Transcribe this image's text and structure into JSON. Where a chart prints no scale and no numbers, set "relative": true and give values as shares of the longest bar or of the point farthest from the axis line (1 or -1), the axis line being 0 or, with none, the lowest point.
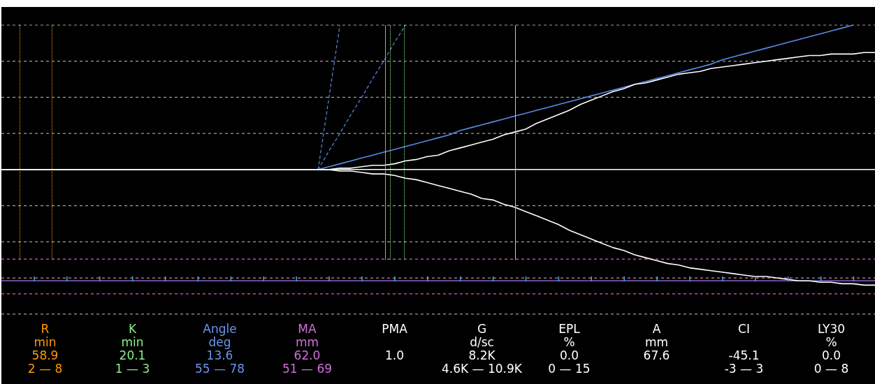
{
  "chart_data": [
    {
      "type": "line",
      "relative": true,
      "legend": false,
      "marker": "none",
      "categories": [
        null,
        null,
        null,
        null,
        null,
        null,
        null,
        null,
        null,
        null,
        null,
        null,
        null,
        null,
        null,
        null,
        null,
        null,
        null,
        null,
        null,
        null,
        null,
        null,
        null,
        null,
        null,
        null,
        null,
        null,
        null,
        null,
        null,
        null,
        null,
        null,
        null,
        null,
        null,
        null,
        null,
        null,
        null,
        null,
        null,
        null,
        null,
        null,
        null,
        null,
        null,
        null,
        null,
        null,
        null,
        null,
        null,
        null,
        null,
        null,
        null,
        null,
        null,
        null,
        null,
        null,
        null,
        null,
        null,
        null,
        null,
        null,
        null,
        null,
        null,
        null,
        null,
        null,
        null,
        null,
        null
      ],
      "series": [
        {
          "color": "#ffffff",
          "values": [
            0,
            0,
            0,
            0,
            0,
            0,
            0,
            0,
            0,
            0,
            0,
            0,
            0,
            0,
            0,
            0,
            0,
            0,
            0,
            0,
            0,
            0,
            0,
            0,
            0,
            0,
            0,
            0,
            0,
            0,
            0,
            0.01,
            0.01,
            0.02,
            0.03,
            0.03,
            0.04,
            0.06,
            0.07,
            0.09,
            0.1,
            0.13,
            0.15,
            0.17,
            0.19,
            0.21,
            0.24,
            0.26,
            0.28,
            0.32,
            0.35,
            0.38,
            0.41,
            0.45,
            0.48,
            0.51,
            0.54,
            0.56,
            0.59,
            0.6,
            0.62,
            0.64,
            0.66,
            0.67,
            0.68,
            0.7,
            0.71,
            0.72,
            0.73,
            0.74,
            0.75,
            0.76,
            0.77,
            0.78,
            0.79,
            0.79,
            0.8,
            0.8,
            0.8,
            0.81,
            0.81
          ]
        },
        {
          "color": "#ffffff",
          "values": [
            null,
            null,
            null,
            null,
            null,
            null,
            null,
            null,
            null,
            null,
            null,
            null,
            null,
            null,
            null,
            null,
            null,
            null,
            null,
            null,
            null,
            null,
            null,
            null,
            null,
            null,
            null,
            null,
            null,
            0,
            0,
            -0.01,
            -0.01,
            -0.02,
            -0.03,
            -0.03,
            -0.04,
            -0.06,
            -0.07,
            -0.09,
            -0.11,
            -0.13,
            -0.15,
            -0.17,
            -0.2,
            -0.21,
            -0.24,
            -0.26,
            -0.29,
            -0.32,
            -0.35,
            -0.38,
            -0.42,
            -0.45,
            -0.48,
            -0.51,
            -0.54,
            -0.56,
            -0.59,
            -0.61,
            -0.63,
            -0.65,
            -0.66,
            -0.68,
            -0.69,
            -0.7,
            -0.71,
            -0.72,
            -0.73,
            -0.74,
            -0.74,
            -0.75,
            -0.76,
            -0.77,
            -0.77,
            -0.78,
            -0.78,
            -0.79,
            -0.79,
            -0.8,
            -0.8
          ]
        },
        {
          "color": "#5b8ae6",
          "values": [
            null,
            null,
            null,
            null,
            null,
            null,
            null,
            null,
            null,
            null,
            null,
            null,
            null,
            null,
            null,
            null,
            null,
            null,
            null,
            null,
            null,
            null,
            null,
            null,
            null,
            null,
            null,
            null,
            null,
            0,
            0.02,
            0.04,
            0.06,
            0.08,
            0.1,
            0.12,
            0.14,
            0.16,
            0.18,
            0.2,
            0.22,
            0.24,
            0.27,
            0.29,
            0.31,
            0.33,
            0.35,
            0.37,
            0.39,
            0.41,
            0.43,
            0.45,
            0.47,
            0.49,
            0.51,
            0.53,
            0.55,
            0.57,
            0.59,
            0.61,
            0.63,
            0.65,
            0.67,
            0.69,
            0.71,
            0.73,
            0.76,
            0.78,
            0.8,
            0.82,
            0.84,
            0.86,
            0.88,
            0.9,
            0.92,
            0.94,
            0.96,
            0.98,
            1,
            null,
            null
          ]
        },
        {
          "color": "#5b8ae6",
          "line_style": "dashed",
          "values": [
            null,
            null,
            null,
            null,
            null,
            null,
            null,
            null,
            null,
            null,
            null,
            null,
            null,
            null,
            null,
            null,
            null,
            null,
            null,
            null,
            null,
            null,
            null,
            null,
            null,
            null,
            null,
            null,
            null,
            0,
            0.5,
            1,
            null,
            null,
            null,
            null,
            null,
            null,
            null,
            null,
            null,
            null,
            null,
            null,
            null,
            null,
            null,
            null,
            null,
            null,
            null,
            null,
            null,
            null,
            null,
            null,
            null,
            null,
            null,
            null,
            null,
            null,
            null,
            null,
            null,
            null,
            null,
            null,
            null,
            null,
            null,
            null,
            null,
            null,
            null,
            null,
            null,
            null,
            null,
            null,
            null
          ]
        },
        {
          "color": "#5b8ae6",
          "line_style": "dashed",
          "values": [
            null,
            null,
            null,
            null,
            null,
            null,
            null,
            null,
            null,
            null,
            null,
            null,
            null,
            null,
            null,
            null,
            null,
            null,
            null,
            null,
            null,
            null,
            null,
            null,
            null,
            null,
            null,
            null,
            null,
            0,
            0.13,
            0.25,
            0.38,
            0.5,
            0.63,
            0.75,
            0.88,
            1,
            null,
            null,
            null,
            null,
            null,
            null,
            null,
            null,
            null,
            null,
            null,
            null,
            null,
            null,
            null,
            null,
            null,
            null,
            null,
            null,
            null,
            null,
            null,
            null,
            null,
            null,
            null,
            null,
            null,
            null,
            null,
            null,
            null,
            null,
            null,
            null,
            null,
            null,
            null,
            null,
            null,
            null,
            null
          ]
        }
      ],
      "ref_lines": [
        {
          "axis": "y",
          "value": 1.0,
          "color": "#a0a0a0",
          "line_style": "dashed"
        },
        {
          "axis": "y",
          "value": 0.75,
          "color": "#a0a0a0",
          "line_style": "dashed"
        },
        {
          "axis": "y",
          "value": 0.5,
          "color": "#a0a0a0",
          "line_style": "dashed"
        },
        {
          "axis": "y",
          "value": 0.25,
          "color": "#a0a0a0",
          "line_style": "dashed"
        },
        {
          "axis": "y",
          "value": -0.25,
          "color": "#a0a0a0",
          "line_style": "dashed"
        },
        {
          "axis": "y",
          "value": -0.5,
          "color": "#a0a0a0",
          "line_style": "dashed"
        },
        {
          "axis": "y",
          "value": -0.75,
          "color": "#a0a0a0",
          "line_style": "dashed"
        },
        {
          "axis": "y",
          "value": -1.0,
          "color": "#a0a0a0",
          "line_style": "dashed"
        },
        {
          "axis": "y",
          "value": -0.62,
          "color": "#cc66cc",
          "line_style": "dashed"
        },
        {
          "axis": "y",
          "value": -0.86,
          "color": "#cc66cc",
          "line_style": "dashed"
        },
        {
          "axis": "y",
          "value": -0.77,
          "color": "#b070f0",
          "line_style": "solid"
        }
      ]
    },
    {
      "type": "other",
      "categories": [
        "R",
        "K",
        "Angle",
        "MA",
        "PMA",
        "G",
        "EPL",
        "A",
        "CI",
        "LY30"
      ],
      "colors": [
        "#ff9900",
        "#88ee88",
        "#6a96f0",
        "#d070d8",
        "#ffffff",
        "#ffffff",
        "#ffffff",
        "#ffffff",
        "#ffffff",
        "#ffffff"
      ],
      "cell_labels": [
        [
          "min",
          "min",
          "deg",
          "mm",
          null,
          "d/sc",
          "%",
          "mm",
          null,
          "%"
        ],
        [
          "58.9",
          "20.1",
          "13.6",
          "62.0",
          "1.0",
          "8.2K",
          "0.0",
          "67.6",
          "-45.1",
          "0.0"
        ],
        [
          "2 — 8",
          "1 — 3",
          "55 — 78",
          "51 — 69",
          null,
          "4.6K — 10.9K",
          "0 — 15",
          null,
          "-3 — 3",
          "0 — 8"
        ]
      ]
    }
  ]
}
